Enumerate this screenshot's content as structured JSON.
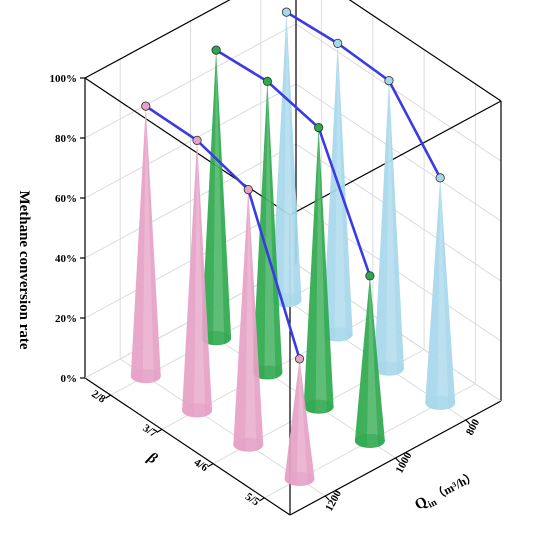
{
  "chart_data": {
    "type": "3d-cone",
    "zlabel": "Methane conversion rate",
    "xlabel": "β",
    "ylabel_main": "Q",
    "ylabel_sub": "in",
    "ylabel_unit": "（m³/h）",
    "z_ticks": [
      "0%",
      "20%",
      "40%",
      "60%",
      "80%",
      "100%"
    ],
    "zlim": [
      0,
      100
    ],
    "categories_beta": [
      "2/8",
      "3/7",
      "4/6",
      "5/5"
    ],
    "categories_q": [
      "1200",
      "1000",
      "800"
    ],
    "grid": true,
    "series": [
      {
        "name": "1200",
        "color": "#e6a1c6",
        "values": [
          90,
          90,
          85,
          40
        ]
      },
      {
        "name": "1000",
        "color": "#2ea84d",
        "values": [
          96,
          97,
          93,
          55
        ]
      },
      {
        "name": "800",
        "color": "#a6d7ea",
        "values": [
          96,
          97,
          96,
          75
        ]
      }
    ],
    "line_color": "#3a3ae6"
  }
}
